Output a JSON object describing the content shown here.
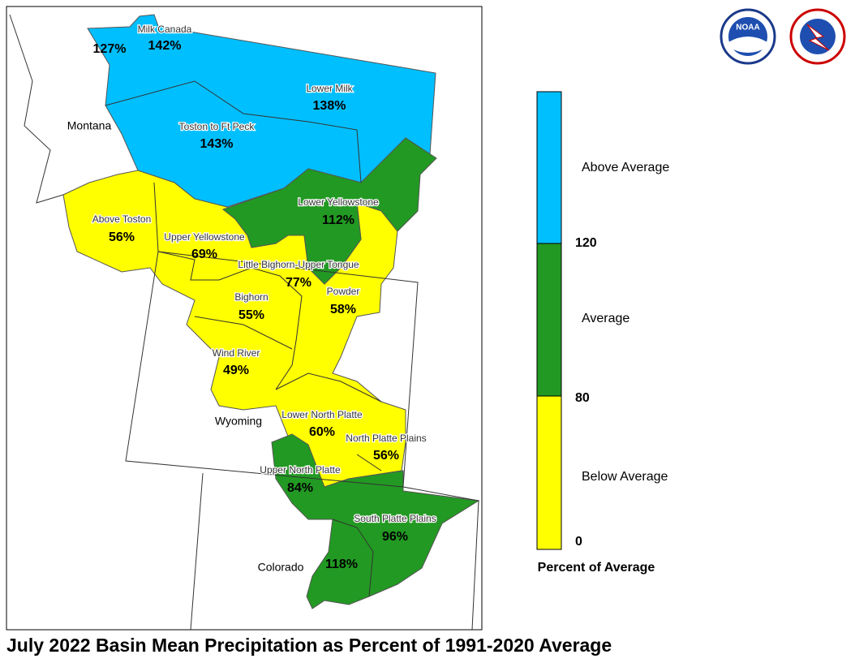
{
  "title": "July 2022 Basin Mean Precipitation as Percent of 1991-2020 Average",
  "logos": {
    "noaa": "NOAA"
  },
  "states": [
    "Montana",
    "Wyoming",
    "Colorado"
  ],
  "basins": [
    {
      "value": "127%"
    },
    {
      "name": "Milk Canada",
      "value": "142%"
    },
    {
      "name": "Lower Milk",
      "value": "138%"
    },
    {
      "name": "Toston to Ft Peck",
      "value": "143%"
    },
    {
      "name": "Lower Yellowstone",
      "value": "112%"
    },
    {
      "name": "Above Toston",
      "value": "56%"
    },
    {
      "name": "Upper Yellowstone",
      "value": "69%"
    },
    {
      "name": "Little Bighorn-Upper Tongue",
      "value": "77%"
    },
    {
      "name": "Bighorn",
      "value": "55%"
    },
    {
      "name": "Powder",
      "value": "58%"
    },
    {
      "name": "Wind River",
      "value": "49%"
    },
    {
      "name": "Lower North Platte",
      "value": "60%"
    },
    {
      "name": "North Platte Plains",
      "value": "56%"
    },
    {
      "name": "Upper North Platte",
      "value": "84%"
    },
    {
      "name": "South Platte Plains",
      "value": "96%"
    },
    {
      "value": "118%"
    }
  ],
  "legend": {
    "title": "Percent of Average",
    "classes": [
      "Above Average",
      "Average",
      "Below Average"
    ],
    "thresholds": [
      120,
      80,
      0
    ]
  }
}
